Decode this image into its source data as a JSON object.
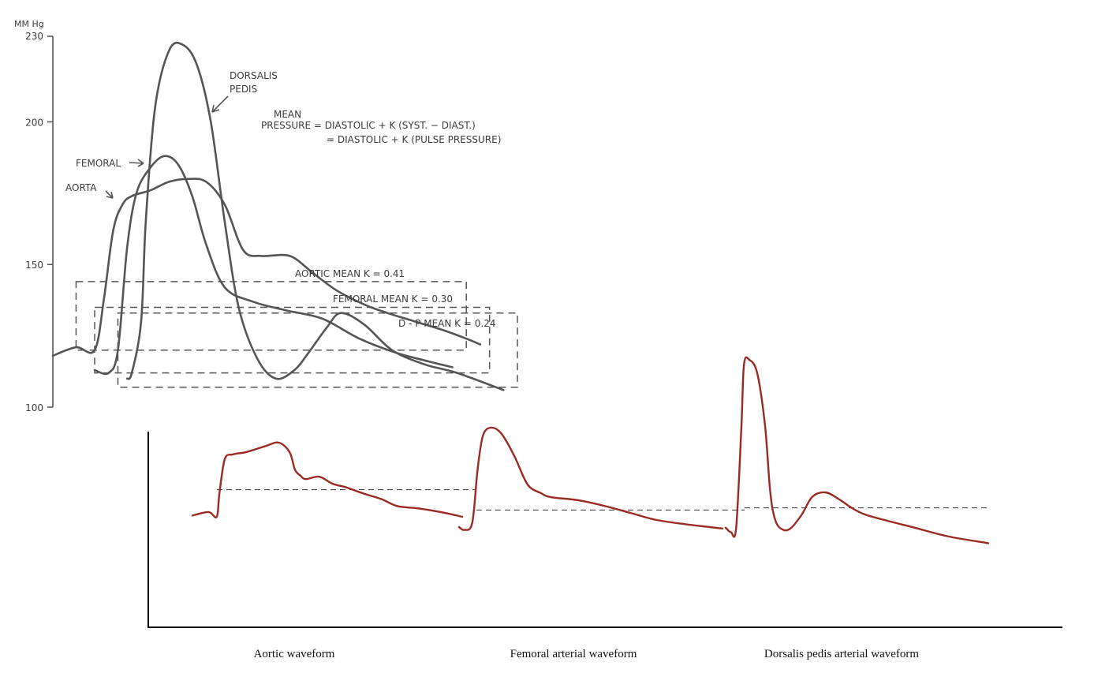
{
  "colors": {
    "upper_chart": "#555555",
    "lower_waves": "#9b2a22",
    "lower_axis": "#000000"
  },
  "chart_data": [
    {
      "type": "line",
      "title": "",
      "ylabel": "MM Hg",
      "ylim": [
        100,
        230
      ],
      "yticks": [
        230,
        200,
        150,
        100
      ],
      "ytick_labels": [
        "230",
        "200",
        "150",
        "100"
      ],
      "series": [
        {
          "name": "AORTA",
          "x": [
            0,
            0.05,
            0.09,
            0.11,
            0.13,
            0.15,
            0.17,
            0.21,
            0.25,
            0.29,
            0.33,
            0.37,
            0.41,
            0.45,
            0.51,
            0.56,
            0.61,
            0.67,
            0.72,
            0.78,
            0.84,
            0.89,
            0.92
          ],
          "y": [
            118,
            121,
            120,
            138,
            162,
            171,
            174,
            176,
            179,
            180,
            179,
            171,
            155,
            153,
            153,
            147,
            141,
            136,
            133,
            130,
            127,
            124,
            122
          ]
        },
        {
          "name": "FEMORAL",
          "x": [
            0.09,
            0.12,
            0.14,
            0.16,
            0.18,
            0.21,
            0.24,
            0.27,
            0.3,
            0.33,
            0.37,
            0.43,
            0.5,
            0.58,
            0.66,
            0.74,
            0.81,
            0.86
          ],
          "y": [
            113,
            112,
            120,
            156,
            175,
            184,
            188,
            185,
            174,
            157,
            142,
            137,
            134,
            131,
            124,
            119,
            116,
            114
          ]
        },
        {
          "name": "DORSALIS PEDIS",
          "x": [
            0.16,
            0.17,
            0.19,
            0.2,
            0.22,
            0.25,
            0.28,
            0.31,
            0.34,
            0.37,
            0.4,
            0.44,
            0.48,
            0.52,
            0.55,
            0.59,
            0.62,
            0.67,
            0.73,
            0.8,
            0.87,
            0.97
          ],
          "y": [
            110,
            112,
            130,
            165,
            205,
            225,
            227,
            220,
            200,
            165,
            135,
            117,
            110,
            113,
            119,
            128,
            133,
            129,
            120,
            115,
            112,
            106
          ]
        }
      ],
      "mean_lines": [
        {
          "label": "AORTIC MEAN",
          "k": "K = 0.41",
          "value": 144,
          "baseline": 120,
          "x_start": 0.05,
          "x_end": 0.89
        },
        {
          "label": "FEMORAL MEAN",
          "k": "K = 0.30",
          "value": 135,
          "baseline": 112,
          "x_start": 0.09,
          "x_end": 0.94
        },
        {
          "label": "D - P MEAN",
          "k": "K = 0.24",
          "value": 133,
          "baseline": 107,
          "x_start": 0.14,
          "x_end": 1.0
        }
      ],
      "annotations": {
        "dorsalis_label": [
          "DORSALIS",
          "PEDIS"
        ],
        "femoral_label": "FEMORAL",
        "aorta_label": "AORTA",
        "formula_mean": "MEAN",
        "formula_line1": "PRESSURE = DIASTOLIC + K (SYST. − DIAST.)",
        "formula_line2": "= DIASTOLIC + K (PULSE PRESSURE)",
        "aortic_mean_label": "AORTIC MEAN  K = 0.41",
        "femoral_mean_label": "FEMORAL MEAN  K = 0.30",
        "dp_mean_label": "D - P MEAN  K = 0.24"
      }
    },
    {
      "type": "line",
      "title": "",
      "ylim": [
        0,
        100
      ],
      "series": [
        {
          "name": "Aortic waveform",
          "x": [
            0,
            0.06,
            0.09,
            0.1,
            0.12,
            0.15,
            0.2,
            0.27,
            0.32,
            0.36,
            0.38,
            0.4,
            0.42,
            0.47,
            0.52,
            0.57,
            0.63,
            0.7,
            0.76,
            0.84,
            0.92,
            1.0
          ],
          "y": [
            36,
            39,
            35,
            55,
            84,
            88,
            90,
            95,
            98,
            90,
            75,
            70,
            67,
            69,
            63,
            60,
            55,
            50,
            44,
            42,
            39,
            35
          ]
        },
        {
          "name": "Femoral arterial waveform",
          "x": [
            0,
            0.02,
            0.05,
            0.07,
            0.09,
            0.12,
            0.16,
            0.21,
            0.26,
            0.31,
            0.35,
            0.45,
            0.55,
            0.65,
            0.75,
            0.86,
            1.0
          ],
          "y": [
            30,
            28,
            33,
            70,
            94,
            100,
            96,
            80,
            60,
            54,
            51,
            49,
            45,
            40,
            35,
            32,
            29
          ]
        },
        {
          "name": "Dorsalis pedis arterial waveform",
          "x": [
            0,
            0.02,
            0.04,
            0.06,
            0.07,
            0.09,
            0.12,
            0.15,
            0.17,
            0.19,
            0.22,
            0.25,
            0.29,
            0.33,
            0.38,
            0.43,
            0.48,
            0.53,
            0.62,
            0.72,
            0.85,
            1.0
          ],
          "y": [
            24,
            22,
            24,
            70,
            98,
            100,
            94,
            70,
            40,
            27,
            23,
            24,
            30,
            38,
            40,
            37,
            33,
            30,
            27,
            24,
            20,
            17
          ]
        }
      ],
      "means": [
        58,
        42,
        33
      ],
      "categories": [
        "Aortic waveform",
        "Femoral arterial waveform",
        "Dorsalis pedis arterial waveform"
      ]
    }
  ]
}
